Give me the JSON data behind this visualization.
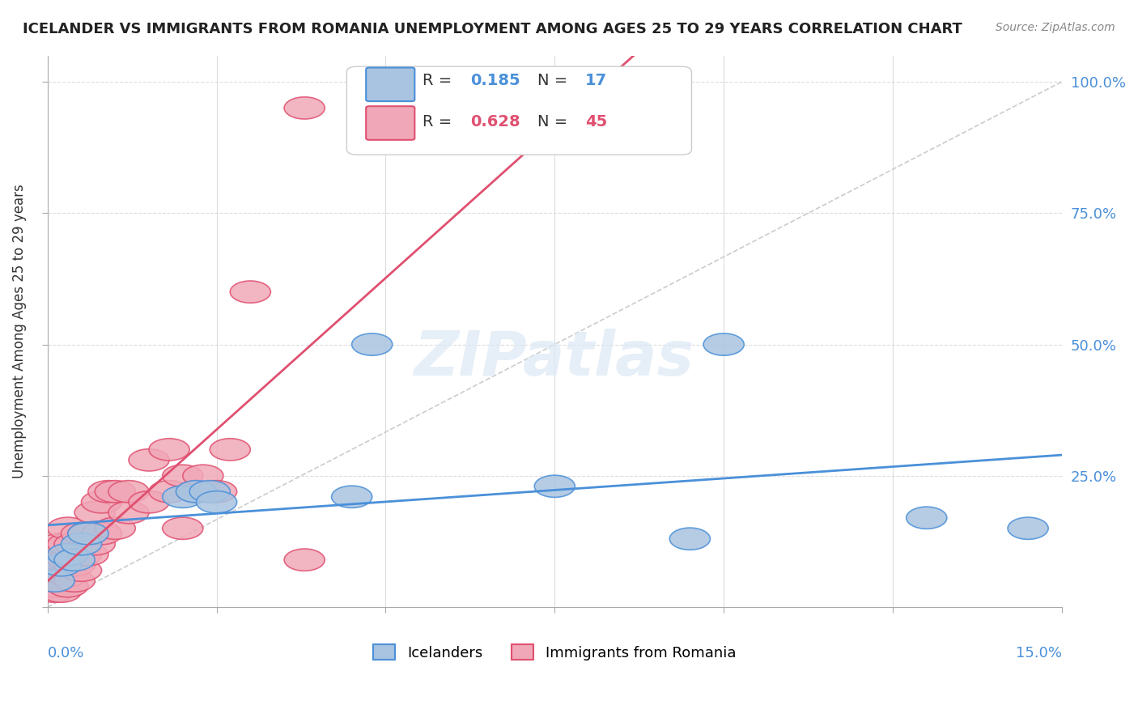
{
  "title": "ICELANDER VS IMMIGRANTS FROM ROMANIA UNEMPLOYMENT AMONG AGES 25 TO 29 YEARS CORRELATION CHART",
  "source": "Source: ZipAtlas.com",
  "ylabel": "Unemployment Among Ages 25 to 29 years",
  "y_tick_labels": [
    "",
    "25.0%",
    "50.0%",
    "75.0%",
    "100.0%"
  ],
  "x_min": 0.0,
  "x_max": 0.15,
  "y_min": 0.0,
  "y_max": 1.05,
  "icelanders_color": "#a8c4e0",
  "romania_color": "#f0a8b8",
  "icelanders_line_color": "#4a90d9",
  "romania_line_color": "#e05070",
  "diag_line_color": "#cccccc",
  "watermark": "ZIPatlas",
  "bg_color": "#ffffff",
  "grid_color": "#dddddd",
  "ice_x": [
    0.001,
    0.002,
    0.003,
    0.004,
    0.005,
    0.006,
    0.02,
    0.022,
    0.024,
    0.025,
    0.045,
    0.048,
    0.075,
    0.095,
    0.1,
    0.13,
    0.145
  ],
  "ice_y": [
    0.05,
    0.08,
    0.1,
    0.09,
    0.12,
    0.14,
    0.21,
    0.22,
    0.22,
    0.2,
    0.21,
    0.5,
    0.23,
    0.13,
    0.5,
    0.17,
    0.15
  ],
  "rom_x": [
    0.001,
    0.001,
    0.001,
    0.001,
    0.001,
    0.002,
    0.002,
    0.002,
    0.002,
    0.002,
    0.003,
    0.003,
    0.003,
    0.003,
    0.003,
    0.004,
    0.004,
    0.004,
    0.005,
    0.005,
    0.005,
    0.006,
    0.006,
    0.007,
    0.007,
    0.008,
    0.008,
    0.009,
    0.01,
    0.01,
    0.012,
    0.012,
    0.015,
    0.015,
    0.018,
    0.018,
    0.02,
    0.02,
    0.022,
    0.023,
    0.025,
    0.027,
    0.03,
    0.038,
    0.038
  ],
  "rom_y": [
    0.03,
    0.04,
    0.05,
    0.06,
    0.08,
    0.03,
    0.05,
    0.07,
    0.09,
    0.12,
    0.04,
    0.06,
    0.09,
    0.12,
    0.15,
    0.05,
    0.08,
    0.12,
    0.07,
    0.1,
    0.14,
    0.1,
    0.14,
    0.12,
    0.18,
    0.14,
    0.2,
    0.22,
    0.15,
    0.22,
    0.18,
    0.22,
    0.2,
    0.28,
    0.22,
    0.3,
    0.15,
    0.25,
    0.22,
    0.25,
    0.22,
    0.3,
    0.6,
    0.09,
    0.95
  ]
}
